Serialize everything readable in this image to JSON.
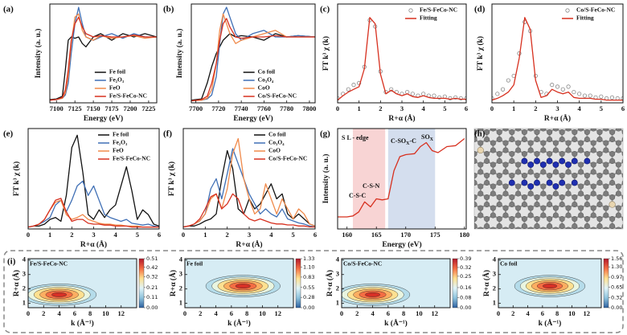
{
  "panel_h": {
    "label": "(h)"
  },
  "chart_data": [
    {
      "type": "line",
      "label": "(a)",
      "xlabel": "Energy (eV)",
      "ylabel": "Intensity (a. u.)",
      "xlim": [
        7091,
        7236
      ],
      "xticks": [
        7100,
        7125,
        7150,
        7175,
        7200,
        7225
      ],
      "ylim": [
        0,
        1.5
      ],
      "legend": "lower right",
      "x": [
        7091,
        7100,
        7108,
        7112,
        7116,
        7120,
        7125,
        7130,
        7135,
        7140,
        7150,
        7160,
        7175,
        7190,
        7205,
        7220,
        7236
      ],
      "series": [
        {
          "name": "Fe foil",
          "color": "#111111",
          "values": [
            0.05,
            0.06,
            0.1,
            0.5,
            0.95,
            1.0,
            0.98,
            1.0,
            0.9,
            0.85,
            1.0,
            1.05,
            0.95,
            1.05,
            1.0,
            1.05,
            1.0
          ]
        },
        {
          "name": "Fe₂O₃",
          "color": "#3f6fb5",
          "values": [
            0.04,
            0.05,
            0.07,
            0.12,
            0.3,
            0.75,
            1.2,
            1.45,
            1.2,
            1.0,
            0.95,
            1.0,
            1.05,
            0.98,
            1.05,
            1.0,
            1.0
          ]
        },
        {
          "name": "FeO",
          "color": "#f08a4b",
          "values": [
            0.04,
            0.05,
            0.07,
            0.15,
            0.4,
            0.9,
            1.3,
            1.35,
            1.1,
            1.0,
            0.95,
            1.02,
            0.98,
            1.0,
            1.02,
            0.98,
            1.0
          ]
        },
        {
          "name": "Fe/S-FeCo-NC",
          "color": "#d7301f",
          "values": [
            0.04,
            0.05,
            0.08,
            0.2,
            0.5,
            0.95,
            1.2,
            1.3,
            1.15,
            1.05,
            1.0,
            1.02,
            1.0,
            1.0,
            1.03,
            1.0,
            1.0
          ]
        }
      ]
    },
    {
      "type": "line",
      "label": "(b)",
      "xlabel": "Energy (eV)",
      "ylabel": "Intensity (a. u.)",
      "xlim": [
        7696,
        7805
      ],
      "xticks": [
        7700,
        7720,
        7740,
        7760,
        7780,
        7800
      ],
      "ylim": [
        0,
        1.5
      ],
      "legend": "lower right",
      "x": [
        7696,
        7705,
        7710,
        7714,
        7718,
        7721,
        7724,
        7727,
        7730,
        7735,
        7740,
        7750,
        7760,
        7770,
        7780,
        7790,
        7805
      ],
      "series": [
        {
          "name": "Co foil",
          "color": "#111111",
          "values": [
            0.04,
            0.06,
            0.3,
            0.55,
            0.75,
            0.85,
            0.95,
            1.0,
            1.05,
            1.0,
            1.02,
            1.0,
            0.95,
            1.05,
            1.0,
            1.02,
            1.0
          ]
        },
        {
          "name": "Co₃O₄",
          "color": "#3f6fb5",
          "values": [
            0.03,
            0.04,
            0.06,
            0.12,
            0.4,
            0.9,
            1.35,
            1.45,
            1.3,
            1.05,
            0.95,
            1.05,
            1.1,
            1.0,
            1.0,
            1.02,
            1.0
          ]
        },
        {
          "name": "CoO",
          "color": "#f08a4b",
          "values": [
            0.03,
            0.04,
            0.07,
            0.2,
            0.6,
            1.1,
            1.35,
            1.2,
            1.05,
            0.9,
            0.95,
            1.0,
            1.05,
            1.1,
            1.0,
            1.0,
            1.0
          ]
        },
        {
          "name": "Co/S-FeCo-NC",
          "color": "#d7301f",
          "values": [
            0.03,
            0.05,
            0.1,
            0.3,
            0.6,
            0.95,
            1.2,
            1.28,
            1.15,
            1.0,
            0.98,
            1.0,
            1.0,
            1.02,
            1.0,
            1.0,
            1.0
          ]
        }
      ]
    },
    {
      "type": "line",
      "label": "(c)",
      "xlabel": "R+α (Å)",
      "ylabel": "FT k³ χ (k)",
      "xlim": [
        0,
        6
      ],
      "xticks": [
        0,
        1,
        2,
        3,
        4,
        5,
        6
      ],
      "ylim": [
        0,
        1.1
      ],
      "legend": "upper right",
      "x": [
        0,
        0.25,
        0.5,
        0.75,
        1,
        1.25,
        1.5,
        1.75,
        2,
        2.25,
        2.5,
        2.75,
        3,
        3.25,
        3.5,
        3.75,
        4,
        4.25,
        4.5,
        4.75,
        5,
        5.25,
        5.5,
        5.75,
        6
      ],
      "series": [
        {
          "name": "Fe/S-FeCo-NC",
          "color": "#888888",
          "marker": "circle",
          "values": [
            0.05,
            0.1,
            0.15,
            0.2,
            0.22,
            0.4,
            0.92,
            0.85,
            0.35,
            0.12,
            0.15,
            0.12,
            0.1,
            0.12,
            0.1,
            0.08,
            0.1,
            0.08,
            0.08,
            0.06,
            0.07,
            0.05,
            0.06,
            0.05,
            0.05
          ]
        },
        {
          "name": "Fitting",
          "color": "#d7301f",
          "values": [
            0.03,
            0.08,
            0.12,
            0.15,
            0.18,
            0.38,
            0.95,
            0.88,
            0.32,
            0.1,
            0.14,
            0.1,
            0.08,
            0.1,
            0.07,
            0.06,
            0.08,
            0.06,
            0.05,
            0.05,
            0.05,
            0.04,
            0.05,
            0.04,
            0.04
          ]
        }
      ]
    },
    {
      "type": "line",
      "label": "(d)",
      "xlabel": "R+α (Å)",
      "ylabel": "FT k³ χ (k)",
      "xlim": [
        0,
        6
      ],
      "xticks": [
        0,
        1,
        2,
        3,
        4,
        5,
        6
      ],
      "ylim": [
        0,
        1.1
      ],
      "legend": "upper right",
      "x": [
        0,
        0.25,
        0.5,
        0.75,
        1,
        1.25,
        1.5,
        1.75,
        2,
        2.25,
        2.5,
        2.75,
        3,
        3.25,
        3.5,
        3.75,
        4,
        4.25,
        4.5,
        4.75,
        5,
        5.25,
        5.5,
        5.75,
        6
      ],
      "series": [
        {
          "name": "Co/S-FeCo-NC",
          "color": "#888888",
          "marker": "circle",
          "values": [
            0.05,
            0.1,
            0.15,
            0.25,
            0.3,
            0.55,
            0.9,
            0.8,
            0.3,
            0.12,
            0.1,
            0.2,
            0.18,
            0.15,
            0.18,
            0.12,
            0.1,
            0.08,
            0.08,
            0.06,
            0.07,
            0.05,
            0.06,
            0.05,
            0.05
          ]
        },
        {
          "name": "Fitting",
          "color": "#d7301f",
          "values": [
            0.03,
            0.05,
            0.08,
            0.12,
            0.2,
            0.5,
            0.95,
            0.82,
            0.25,
            0.06,
            0.08,
            0.15,
            0.12,
            0.1,
            0.12,
            0.06,
            0.05,
            0.05,
            0.05,
            0.04,
            0.04,
            0.03,
            0.03,
            0.03,
            0.03
          ]
        }
      ]
    },
    {
      "type": "line",
      "label": "(e)",
      "xlabel": "R+α (Å)",
      "ylabel": "FT k³ χ (k)",
      "xlim": [
        0,
        6
      ],
      "xticks": [
        0,
        1,
        2,
        3,
        4,
        5,
        6
      ],
      "ylim": [
        0,
        1.05
      ],
      "legend": "upper right",
      "x": [
        0,
        0.25,
        0.5,
        0.75,
        1,
        1.25,
        1.5,
        1.75,
        2,
        2.25,
        2.5,
        2.75,
        3,
        3.25,
        3.5,
        3.75,
        4,
        4.25,
        4.5,
        4.75,
        5,
        5.25,
        5.5,
        5.75,
        6
      ],
      "series": [
        {
          "name": "Fe foil",
          "color": "#111111",
          "values": [
            0.02,
            0.03,
            0.03,
            0.05,
            0.1,
            0.12,
            0.08,
            0.35,
            0.85,
            0.98,
            0.6,
            0.15,
            0.1,
            0.2,
            0.12,
            0.2,
            0.25,
            0.45,
            0.65,
            0.4,
            0.1,
            0.2,
            0.15,
            0.05,
            0.03
          ]
        },
        {
          "name": "Fe₂O₃",
          "color": "#3f6fb5",
          "values": [
            0.02,
            0.03,
            0.05,
            0.08,
            0.12,
            0.25,
            0.3,
            0.18,
            0.3,
            0.45,
            0.5,
            0.35,
            0.45,
            0.3,
            0.15,
            0.12,
            0.1,
            0.08,
            0.1,
            0.06,
            0.05,
            0.04,
            0.05,
            0.03,
            0.02
          ]
        },
        {
          "name": "FeO",
          "color": "#f08a4b",
          "values": [
            0.02,
            0.03,
            0.05,
            0.1,
            0.2,
            0.28,
            0.3,
            0.15,
            0.1,
            0.12,
            0.15,
            0.1,
            0.08,
            0.06,
            0.05,
            0.05,
            0.04,
            0.04,
            0.03,
            0.03,
            0.03,
            0.02,
            0.02,
            0.02,
            0.02
          ]
        },
        {
          "name": "Fe/S-FeCo-NC",
          "color": "#d7301f",
          "values": [
            0.02,
            0.03,
            0.05,
            0.1,
            0.2,
            0.3,
            0.32,
            0.18,
            0.08,
            0.1,
            0.1,
            0.06,
            0.05,
            0.05,
            0.04,
            0.04,
            0.03,
            0.03,
            0.03,
            0.02,
            0.02,
            0.02,
            0.02,
            0.02,
            0.02
          ]
        }
      ]
    },
    {
      "type": "line",
      "label": "(f)",
      "xlabel": "R+α (Å)",
      "ylabel": "FT k³ χ (k)",
      "xlim": [
        0,
        6
      ],
      "xticks": [
        0,
        1,
        2,
        3,
        4,
        5,
        6
      ],
      "ylim": [
        0,
        1.0
      ],
      "legend": "upper right",
      "x": [
        0,
        0.25,
        0.5,
        0.75,
        1,
        1.25,
        1.5,
        1.75,
        2,
        2.25,
        2.5,
        2.75,
        3,
        3.25,
        3.5,
        3.75,
        4,
        4.25,
        4.5,
        4.75,
        5,
        5.25,
        5.5,
        5.75,
        6
      ],
      "series": [
        {
          "name": "Co foil",
          "color": "#111111",
          "values": [
            0.02,
            0.03,
            0.03,
            0.05,
            0.08,
            0.1,
            0.15,
            0.5,
            0.78,
            0.6,
            0.2,
            0.15,
            0.3,
            0.2,
            0.25,
            0.35,
            0.45,
            0.3,
            0.35,
            0.15,
            0.1,
            0.15,
            0.1,
            0.05,
            0.03
          ]
        },
        {
          "name": "Co₃O₄",
          "color": "#3f6fb5",
          "values": [
            0.02,
            0.03,
            0.05,
            0.08,
            0.15,
            0.4,
            0.5,
            0.3,
            0.55,
            0.8,
            0.65,
            0.5,
            0.35,
            0.25,
            0.15,
            0.2,
            0.15,
            0.12,
            0.2,
            0.1,
            0.08,
            0.06,
            0.05,
            0.03,
            0.02
          ]
        },
        {
          "name": "CoO",
          "color": "#f08a4b",
          "values": [
            0.02,
            0.03,
            0.05,
            0.08,
            0.15,
            0.3,
            0.35,
            0.2,
            0.4,
            0.75,
            0.9,
            0.5,
            0.3,
            0.15,
            0.2,
            0.45,
            0.3,
            0.15,
            0.3,
            0.2,
            0.1,
            0.2,
            0.15,
            0.05,
            0.03
          ]
        },
        {
          "name": "Co/S-FeCo-NC",
          "color": "#d7301f",
          "values": [
            0.02,
            0.03,
            0.05,
            0.1,
            0.2,
            0.32,
            0.35,
            0.2,
            0.25,
            0.35,
            0.3,
            0.15,
            0.1,
            0.08,
            0.1,
            0.08,
            0.06,
            0.05,
            0.05,
            0.04,
            0.04,
            0.03,
            0.03,
            0.02,
            0.02
          ]
        }
      ]
    },
    {
      "type": "line",
      "label": "(g)",
      "xlabel": "Energy (eV)",
      "ylabel": "Intensity (a. u.)",
      "xlim": [
        158.4,
        180.3
      ],
      "xticks": [
        160,
        165,
        170,
        175,
        180
      ],
      "ylim": [
        0,
        1
      ],
      "bands": [
        {
          "xlim": [
            161,
            166.5
          ],
          "color": "#f6c9c9"
        },
        {
          "xlim": [
            167,
            175
          ],
          "color": "#c9d6ea"
        }
      ],
      "annotations": [
        "S L - edge",
        "C-S-C",
        "C-S-N",
        {
          "text": "C-SO",
          "sub": "X",
          "after": "-C"
        },
        {
          "text": "SO",
          "sub": "X"
        }
      ],
      "x": [
        158.4,
        160,
        161,
        162,
        163,
        164,
        165,
        166,
        167,
        168,
        169,
        170,
        171.5,
        172.5,
        173.5,
        174.5,
        175.5,
        177,
        178.5,
        180
      ],
      "series": [
        {
          "color": "#d7301f",
          "values": [
            0.12,
            0.12,
            0.13,
            0.17,
            0.27,
            0.22,
            0.3,
            0.29,
            0.3,
            0.58,
            0.72,
            0.74,
            0.75,
            0.82,
            0.86,
            0.78,
            0.76,
            0.82,
            0.83,
            0.9
          ]
        }
      ]
    },
    {
      "type": "contour",
      "label": "(i)",
      "title": "Fe/S-FeCo-NC",
      "xlabel": "k (Å⁻¹)",
      "ylabel": "R+α (Å)",
      "xlim": [
        0,
        14
      ],
      "xticks": [
        0,
        2,
        4,
        6,
        8,
        10,
        12
      ],
      "ylim": [
        0.7,
        4.1
      ],
      "yticks": [
        1,
        2,
        3,
        4
      ],
      "clim": [
        0,
        0.51
      ],
      "cticks": [
        0.51,
        0.42,
        0.32,
        0.21,
        0.11,
        {
          "value": 0,
          "label": "0.00"
        }
      ],
      "peak": [
        4,
        1.6
      ]
    },
    {
      "type": "contour",
      "title": "Fe foil",
      "xlabel": "k (Å⁻¹)",
      "ylabel": "R+α (Å)",
      "xlim": [
        0,
        14
      ],
      "xticks": [
        0,
        2,
        4,
        6,
        8,
        10,
        12
      ],
      "ylim": [
        0.7,
        4.1
      ],
      "yticks": [
        1,
        2,
        3,
        4
      ],
      "clim": [
        0,
        1.33
      ],
      "cticks": [
        1.33,
        {
          "value": 1.1,
          "label": "1.10"
        },
        0.83,
        0.55,
        0.28,
        {
          "value": 0,
          "label": "0.00"
        }
      ],
      "peak": [
        7.5,
        2.2
      ]
    },
    {
      "type": "contour",
      "title": "Co/S-FeCo-NC",
      "xlabel": "k (Å⁻¹)",
      "ylabel": "R+α (Å)",
      "xlim": [
        0,
        14
      ],
      "xticks": [
        0,
        2,
        4,
        6,
        8,
        10,
        12
      ],
      "ylim": [
        0.7,
        4.1
      ],
      "yticks": [
        1,
        2,
        3,
        4
      ],
      "clim": [
        0,
        0.39
      ],
      "cticks": [
        0.39,
        0.32,
        0.25,
        0.16,
        0.08,
        {
          "value": 0,
          "label": "0.00"
        }
      ],
      "peak": [
        4,
        1.6
      ]
    },
    {
      "type": "contour",
      "title": "Co foil",
      "xlabel": "k (Å⁻¹)",
      "ylabel": "R+α (Å)",
      "xlim": [
        0,
        14
      ],
      "xticks": [
        0,
        2,
        4,
        6,
        8,
        10,
        12
      ],
      "ylim": [
        0.7,
        4.1
      ],
      "yticks": [
        1,
        2,
        3,
        4
      ],
      "clim": [
        0,
        1.56
      ],
      "cticks": [
        1.56,
        {
          "value": 1.3,
          "label": "1.30"
        },
        0.97,
        0.65,
        0.32,
        {
          "value": 0,
          "label": "0.00"
        }
      ],
      "peak": [
        7,
        2.2
      ]
    }
  ]
}
